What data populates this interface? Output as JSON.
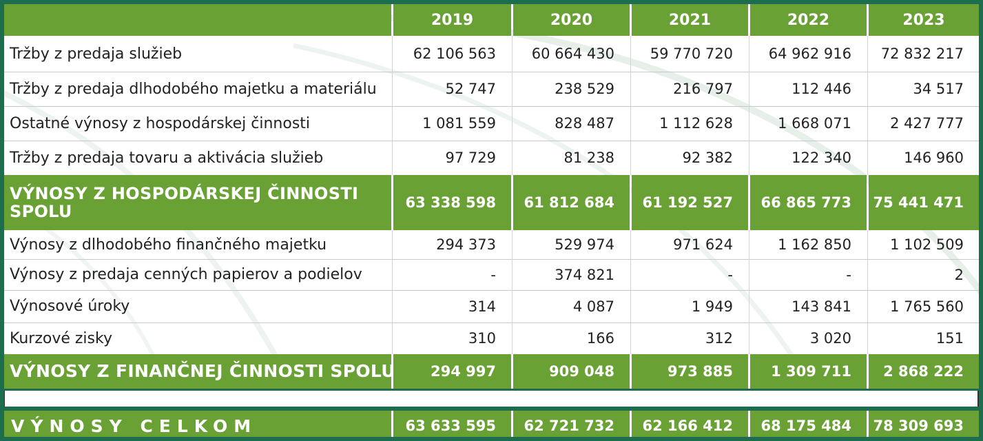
{
  "header": {
    "years": [
      "2019",
      "2020",
      "2021",
      "2022",
      "2023"
    ]
  },
  "rows": [
    {
      "label": "Tržby z predaja služieb",
      "values": [
        "62 106 563",
        "60 664 430",
        "59 770 720",
        "64 962 916",
        "72 832 217"
      ]
    },
    {
      "label": "Tržby z predaja dlhodobého majetku a materiálu",
      "values": [
        "52 747",
        "238 529",
        "216 797",
        "112 446",
        "34 517"
      ]
    },
    {
      "label": "Ostatné výnosy z hospodárskej činnosti",
      "values": [
        "1 081 559",
        "828 487",
        "1 112 628",
        "1 668 071",
        "2 427 777"
      ]
    },
    {
      "label": "Tržby z predaja tovaru a aktivácia služieb",
      "values": [
        "97 729",
        "81 238",
        "92 382",
        "122 340",
        "146 960"
      ]
    }
  ],
  "total_operating": {
    "label": "VÝNOSY Z HOSPODÁRSKEJ ČINNOSTI SPOLU",
    "values": [
      "63 338 598",
      "61 812 684",
      "61 192 527",
      "66 865 773",
      "75 441 471"
    ]
  },
  "rows_financial": [
    {
      "label": "Výnosy z dlhodobého finančného majetku",
      "values": [
        "294 373",
        "529 974",
        "971 624",
        "1 162 850",
        "1 102 509"
      ]
    },
    {
      "label": "Výnosy z predaja cenných papierov a podielov",
      "values": [
        "-",
        "374 821",
        "-",
        "-",
        "2"
      ]
    },
    {
      "label": "Výnosové úroky",
      "values": [
        "314",
        "4 087",
        "1 949",
        "143 841",
        "1 765 560"
      ]
    },
    {
      "label": "Kurzové zisky",
      "values": [
        "310",
        "166",
        "312",
        "3 020",
        "151"
      ]
    }
  ],
  "total_financial": {
    "label": "VÝNOSY Z FINANČNEJ ČINNOSTI SPOLU",
    "values": [
      "294 997",
      "909 048",
      "973 885",
      "1 309 711",
      "2 868 222"
    ]
  },
  "grand_total": {
    "label": "VÝNOSY CELKOM",
    "values": [
      "63 633 595",
      "62 721 732",
      "62 166 412",
      "68 175 484",
      "78 309 693"
    ]
  },
  "colors": {
    "green": "#6aa135",
    "dark_green": "#1c6e4f"
  }
}
